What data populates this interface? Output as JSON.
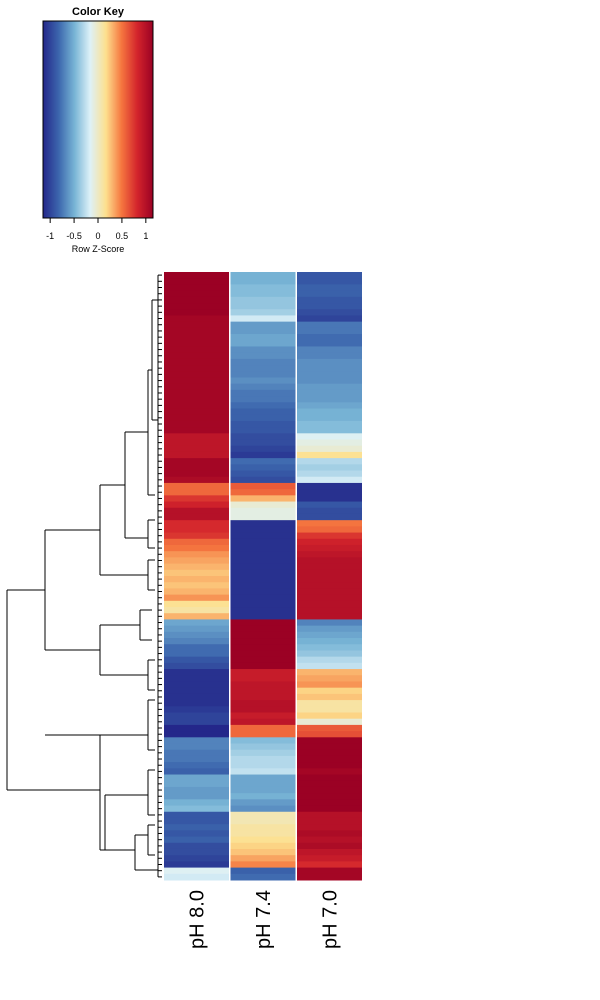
{
  "chart_data": {
    "type": "heatmap",
    "title": "",
    "color_key": {
      "title": "Color Key",
      "xlabel": "Row Z-Score",
      "ticks": [
        "-1",
        "-0.5",
        "0",
        "0.5",
        "1"
      ],
      "tick_values": [
        -1,
        -0.5,
        0,
        0.5,
        1
      ],
      "range": [
        -1.15,
        1.15
      ],
      "colors": [
        "#24278a",
        "#3c66ad",
        "#77b4d5",
        "#ddf1f8",
        "#fde08e",
        "#f5763f",
        "#d3242c",
        "#9b0124"
      ]
    },
    "columns": [
      "pH 8.0",
      "pH 7.4",
      "pH 7.0"
    ],
    "rows": [
      [
        1.15,
        -0.5,
        -0.9
      ],
      [
        1.15,
        -0.5,
        -0.9
      ],
      [
        1.15,
        -0.45,
        -0.85
      ],
      [
        1.15,
        -0.45,
        -0.85
      ],
      [
        1.15,
        -0.4,
        -0.9
      ],
      [
        1.15,
        -0.4,
        -0.9
      ],
      [
        1.15,
        -0.35,
        -0.95
      ],
      [
        1.1,
        -0.2,
        -1.0
      ],
      [
        1.1,
        -0.6,
        -0.75
      ],
      [
        1.1,
        -0.6,
        -0.75
      ],
      [
        1.1,
        -0.55,
        -0.8
      ],
      [
        1.1,
        -0.55,
        -0.8
      ],
      [
        1.1,
        -0.65,
        -0.7
      ],
      [
        1.1,
        -0.65,
        -0.7
      ],
      [
        1.1,
        -0.7,
        -0.65
      ],
      [
        1.1,
        -0.7,
        -0.65
      ],
      [
        1.1,
        -0.7,
        -0.65
      ],
      [
        1.1,
        -0.65,
        -0.65
      ],
      [
        1.1,
        -0.7,
        -0.6
      ],
      [
        1.1,
        -0.75,
        -0.6
      ],
      [
        1.1,
        -0.75,
        -0.6
      ],
      [
        1.1,
        -0.8,
        -0.55
      ],
      [
        1.1,
        -0.85,
        -0.5
      ],
      [
        1.1,
        -0.85,
        -0.5
      ],
      [
        1.1,
        -0.9,
        -0.45
      ],
      [
        1.1,
        -0.9,
        -0.45
      ],
      [
        0.95,
        -0.95,
        -0.15
      ],
      [
        0.95,
        -0.95,
        -0.1
      ],
      [
        0.95,
        -1.0,
        -0.05
      ],
      [
        0.95,
        -1.05,
        0.15
      ],
      [
        1.1,
        -0.8,
        -0.3
      ],
      [
        1.1,
        -0.85,
        -0.35
      ],
      [
        1.1,
        -0.9,
        -0.3
      ],
      [
        1.05,
        -0.95,
        -0.2
      ],
      [
        0.55,
        0.6,
        -1.1
      ],
      [
        0.55,
        0.55,
        -1.1
      ],
      [
        0.75,
        0.3,
        -1.1
      ],
      [
        0.85,
        -0.05,
        -0.9
      ],
      [
        1.0,
        -0.1,
        -0.95
      ],
      [
        1.0,
        -0.1,
        -0.95
      ],
      [
        0.8,
        -1.1,
        0.5
      ],
      [
        0.8,
        -1.1,
        0.55
      ],
      [
        0.75,
        -1.1,
        0.75
      ],
      [
        0.55,
        -1.1,
        0.85
      ],
      [
        0.5,
        -1.1,
        0.9
      ],
      [
        0.4,
        -1.1,
        0.95
      ],
      [
        0.35,
        -1.1,
        1.0
      ],
      [
        0.3,
        -1.1,
        1.0
      ],
      [
        0.25,
        -1.1,
        1.0
      ],
      [
        0.3,
        -1.1,
        1.0
      ],
      [
        0.25,
        -1.1,
        1.0
      ],
      [
        0.3,
        -1.1,
        1.0
      ],
      [
        0.4,
        -1.1,
        1.0
      ],
      [
        0.15,
        -1.1,
        1.0
      ],
      [
        0.1,
        -1.1,
        1.0
      ],
      [
        0.3,
        -1.1,
        1.0
      ],
      [
        -0.55,
        1.15,
        -0.7
      ],
      [
        -0.6,
        1.15,
        -0.6
      ],
      [
        -0.65,
        1.15,
        -0.55
      ],
      [
        -0.7,
        1.15,
        -0.5
      ],
      [
        -0.8,
        1.15,
        -0.45
      ],
      [
        -0.8,
        1.15,
        -0.4
      ],
      [
        -0.9,
        1.15,
        -0.3
      ],
      [
        -0.95,
        1.15,
        -0.25
      ],
      [
        -1.1,
        0.9,
        0.3
      ],
      [
        -1.1,
        0.9,
        0.35
      ],
      [
        -1.1,
        0.95,
        0.4
      ],
      [
        -1.1,
        0.95,
        0.2
      ],
      [
        -1.1,
        0.95,
        0.25
      ],
      [
        -1.1,
        1.0,
        0.1
      ],
      [
        -1.05,
        1.0,
        0.1
      ],
      [
        -1.0,
        0.9,
        0.2
      ],
      [
        -1.0,
        0.95,
        -0.05
      ],
      [
        -1.15,
        0.55,
        0.6
      ],
      [
        -1.15,
        0.55,
        0.65
      ],
      [
        -0.7,
        -0.45,
        1.15
      ],
      [
        -0.7,
        -0.4,
        1.15
      ],
      [
        -0.75,
        -0.35,
        1.15
      ],
      [
        -0.75,
        -0.3,
        1.15
      ],
      [
        -0.8,
        -0.3,
        1.15
      ],
      [
        -0.85,
        -0.25,
        1.1
      ],
      [
        -0.55,
        -0.55,
        1.15
      ],
      [
        -0.55,
        -0.55,
        1.15
      ],
      [
        -0.6,
        -0.55,
        1.15
      ],
      [
        -0.6,
        -0.5,
        1.15
      ],
      [
        -0.5,
        -0.6,
        1.15
      ],
      [
        -0.45,
        -0.65,
        1.15
      ],
      [
        -0.9,
        0.05,
        1.0
      ],
      [
        -0.9,
        0.05,
        1.0
      ],
      [
        -0.85,
        0.1,
        1.0
      ],
      [
        -0.9,
        0.1,
        1.05
      ],
      [
        -0.85,
        0.15,
        1.0
      ],
      [
        -0.95,
        0.2,
        1.05
      ],
      [
        -0.95,
        0.25,
        0.95
      ],
      [
        -1.0,
        0.35,
        0.9
      ],
      [
        -1.05,
        0.45,
        0.8
      ],
      [
        -0.15,
        -0.85,
        1.1
      ],
      [
        -0.2,
        -0.8,
        1.1
      ]
    ]
  }
}
